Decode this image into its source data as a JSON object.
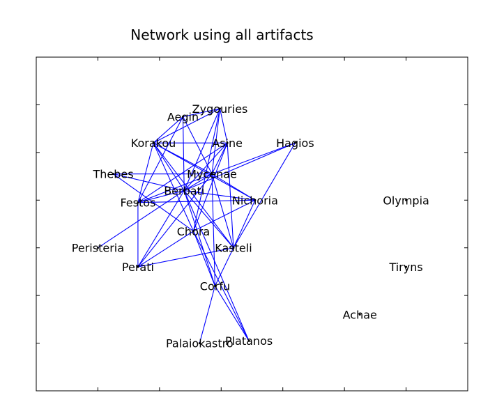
{
  "title": "Network using all artifacts",
  "colors": {
    "edge": "#0000ff",
    "frame": "#000000",
    "label": "#000000"
  },
  "chart_data": {
    "type": "network",
    "title": "Network using all artifacts",
    "xlim": [
      0,
      7
    ],
    "ylim": [
      0,
      7
    ],
    "nodes": [
      {
        "name": "Zygouries",
        "x": 2.98,
        "y": 5.92
      },
      {
        "name": "Aegin",
        "x": 2.38,
        "y": 5.75
      },
      {
        "name": "Korakou",
        "x": 1.9,
        "y": 5.2
      },
      {
        "name": "Asine",
        "x": 3.1,
        "y": 5.2
      },
      {
        "name": "Hagios",
        "x": 4.2,
        "y": 5.2
      },
      {
        "name": "Thebes",
        "x": 1.25,
        "y": 4.55
      },
      {
        "name": "Mycenae",
        "x": 2.85,
        "y": 4.55
      },
      {
        "name": "Berbati",
        "x": 2.4,
        "y": 4.2
      },
      {
        "name": "Festos",
        "x": 1.65,
        "y": 3.95
      },
      {
        "name": "Nichoria",
        "x": 3.55,
        "y": 4.0
      },
      {
        "name": "Olympia",
        "x": 6.0,
        "y": 4.0
      },
      {
        "name": "Chora",
        "x": 2.55,
        "y": 3.35
      },
      {
        "name": "Peristeria",
        "x": 1.0,
        "y": 3.0
      },
      {
        "name": "Kasteli",
        "x": 3.2,
        "y": 3.0
      },
      {
        "name": "Tiryns",
        "x": 6.0,
        "y": 2.6
      },
      {
        "name": "Perati",
        "x": 1.65,
        "y": 2.6
      },
      {
        "name": "Corfu",
        "x": 2.9,
        "y": 2.2
      },
      {
        "name": "Achae",
        "x": 5.25,
        "y": 1.6
      },
      {
        "name": "Platanos",
        "x": 3.45,
        "y": 1.05
      },
      {
        "name": "Palaiokastro",
        "x": 2.65,
        "y": 1.0
      }
    ],
    "edges": [
      [
        "Zygouries",
        "Aegin"
      ],
      [
        "Zygouries",
        "Korakou"
      ],
      [
        "Zygouries",
        "Asine"
      ],
      [
        "Zygouries",
        "Mycenae"
      ],
      [
        "Zygouries",
        "Berbati"
      ],
      [
        "Zygouries",
        "Chora"
      ],
      [
        "Aegin",
        "Korakou"
      ],
      [
        "Aegin",
        "Mycenae"
      ],
      [
        "Aegin",
        "Berbati"
      ],
      [
        "Aegin",
        "Festos"
      ],
      [
        "Korakou",
        "Asine"
      ],
      [
        "Korakou",
        "Mycenae"
      ],
      [
        "Korakou",
        "Berbati"
      ],
      [
        "Korakou",
        "Festos"
      ],
      [
        "Korakou",
        "Nichoria"
      ],
      [
        "Korakou",
        "Chora"
      ],
      [
        "Korakou",
        "Kasteli"
      ],
      [
        "Asine",
        "Mycenae"
      ],
      [
        "Asine",
        "Berbati"
      ],
      [
        "Asine",
        "Festos"
      ],
      [
        "Asine",
        "Chora"
      ],
      [
        "Asine",
        "Kasteli"
      ],
      [
        "Hagios",
        "Mycenae"
      ],
      [
        "Hagios",
        "Berbati"
      ],
      [
        "Hagios",
        "Kasteli"
      ],
      [
        "Thebes",
        "Mycenae"
      ],
      [
        "Thebes",
        "Berbati"
      ],
      [
        "Thebes",
        "Chora"
      ],
      [
        "Mycenae",
        "Berbati"
      ],
      [
        "Mycenae",
        "Festos"
      ],
      [
        "Mycenae",
        "Nichoria"
      ],
      [
        "Mycenae",
        "Perati"
      ],
      [
        "Mycenae",
        "Kasteli"
      ],
      [
        "Mycenae",
        "Corfu"
      ],
      [
        "Berbati",
        "Festos"
      ],
      [
        "Berbati",
        "Nichoria"
      ],
      [
        "Berbati",
        "Peristeria"
      ],
      [
        "Berbati",
        "Kasteli"
      ],
      [
        "Berbati",
        "Corfu"
      ],
      [
        "Berbati",
        "Platanos"
      ],
      [
        "Berbati",
        "Perati"
      ],
      [
        "Festos",
        "Nichoria"
      ],
      [
        "Festos",
        "Perati"
      ],
      [
        "Nichoria",
        "Chora"
      ],
      [
        "Nichoria",
        "Kasteli"
      ],
      [
        "Chora",
        "Perati"
      ],
      [
        "Chora",
        "Corfu"
      ],
      [
        "Chora",
        "Platanos"
      ],
      [
        "Kasteli",
        "Perati"
      ],
      [
        "Kasteli",
        "Corfu"
      ],
      [
        "Corfu",
        "Palaiokastro"
      ],
      [
        "Corfu",
        "Platanos"
      ]
    ]
  }
}
